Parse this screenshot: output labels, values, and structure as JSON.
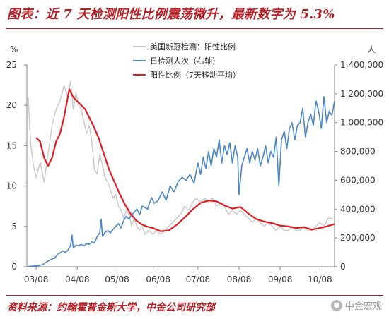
{
  "header": {
    "title": "图表：近 7 天检测阳性比例震荡微升，最新数字为 5.3%"
  },
  "footer": {
    "source": "资料来源：约翰霍普金斯大学，中金公司研究部",
    "watermark": "中金宏观"
  },
  "colors": {
    "title": "#b22026",
    "positivity_daily": "#c8c8c8",
    "tests": "#4a86c8",
    "positivity_7d": "#e31b23"
  },
  "chart_data": {
    "type": "line",
    "left_axis": {
      "unit_label": "%",
      "range": [
        0,
        25
      ],
      "ticks": [
        0,
        5,
        10,
        15,
        20,
        25
      ]
    },
    "right_axis": {
      "unit_label": "人",
      "range": [
        0,
        1400000
      ],
      "ticks": [
        0,
        200000,
        400000,
        600000,
        800000,
        1000000,
        1200000,
        1400000
      ],
      "tick_labels": [
        "0",
        "200,000",
        "400,000",
        "600,000",
        "800,000",
        "1,000,000",
        "1,200,000",
        "1,400,000"
      ]
    },
    "x_axis": {
      "range": [
        "2020-03-01",
        "2020-10-19"
      ],
      "tick_dates": [
        "2020-03-08",
        "2020-04-08",
        "2020-05-08",
        "2020-06-08",
        "2020-07-08",
        "2020-08-08",
        "2020-09-08",
        "2020-10-08"
      ],
      "tick_labels": [
        "03/08",
        "04/08",
        "05/08",
        "06/08",
        "07/08",
        "08/08",
        "09/08",
        "10/08"
      ]
    },
    "grid": false,
    "legend": {
      "position": "top-center"
    },
    "series": [
      {
        "name": "美国新冠检测：阳性比例",
        "axis": "left",
        "style": "daily",
        "points": [
          [
            "2020-03-02",
            21.0
          ],
          [
            "2020-03-04",
            15.0
          ],
          [
            "2020-03-06",
            12.5
          ],
          [
            "2020-03-08",
            11.0
          ],
          [
            "2020-03-11",
            13.0
          ],
          [
            "2020-03-14",
            10.5
          ],
          [
            "2020-03-17",
            14.0
          ],
          [
            "2020-03-20",
            17.5
          ],
          [
            "2020-03-23",
            19.5
          ],
          [
            "2020-03-26",
            20.5
          ],
          [
            "2020-03-29",
            22.5
          ],
          [
            "2020-04-01",
            21.0
          ],
          [
            "2020-04-03",
            23.0
          ],
          [
            "2020-04-05",
            19.5
          ],
          [
            "2020-04-07",
            21.5
          ],
          [
            "2020-04-09",
            20.0
          ],
          [
            "2020-04-11",
            19.5
          ],
          [
            "2020-04-13",
            18.0
          ],
          [
            "2020-04-15",
            16.5
          ],
          [
            "2020-04-17",
            17.5
          ],
          [
            "2020-04-19",
            15.5
          ],
          [
            "2020-04-21",
            12.0
          ],
          [
            "2020-04-23",
            11.5
          ],
          [
            "2020-04-25",
            14.0
          ],
          [
            "2020-04-27",
            12.5
          ],
          [
            "2020-04-29",
            11.0
          ],
          [
            "2020-05-01",
            10.5
          ],
          [
            "2020-05-03",
            9.5
          ],
          [
            "2020-05-05",
            8.5
          ],
          [
            "2020-05-07",
            9.0
          ],
          [
            "2020-05-09",
            7.5
          ],
          [
            "2020-05-11",
            7.0
          ],
          [
            "2020-05-13",
            6.0
          ],
          [
            "2020-05-15",
            7.0
          ],
          [
            "2020-05-17",
            6.5
          ],
          [
            "2020-05-19",
            5.0
          ],
          [
            "2020-05-21",
            6.0
          ],
          [
            "2020-05-23",
            5.0
          ],
          [
            "2020-05-25",
            4.5
          ],
          [
            "2020-05-27",
            5.0
          ],
          [
            "2020-05-29",
            4.0
          ],
          [
            "2020-06-01",
            4.5
          ],
          [
            "2020-06-04",
            4.0
          ],
          [
            "2020-06-07",
            4.5
          ],
          [
            "2020-06-10",
            4.0
          ],
          [
            "2020-06-13",
            4.5
          ],
          [
            "2020-06-16",
            5.0
          ],
          [
            "2020-06-19",
            5.5
          ],
          [
            "2020-06-22",
            6.0
          ],
          [
            "2020-06-25",
            6.5
          ],
          [
            "2020-06-28",
            7.5
          ],
          [
            "2020-07-01",
            7.0
          ],
          [
            "2020-07-04",
            8.0
          ],
          [
            "2020-07-07",
            8.5
          ],
          [
            "2020-07-10",
            8.0
          ],
          [
            "2020-07-13",
            8.5
          ],
          [
            "2020-07-16",
            8.0
          ],
          [
            "2020-07-19",
            8.5
          ],
          [
            "2020-07-22",
            7.5
          ],
          [
            "2020-07-25",
            8.0
          ],
          [
            "2020-07-28",
            7.5
          ],
          [
            "2020-07-31",
            6.5
          ],
          [
            "2020-08-03",
            7.0
          ],
          [
            "2020-08-06",
            6.5
          ],
          [
            "2020-08-09",
            7.0
          ],
          [
            "2020-08-12",
            6.5
          ],
          [
            "2020-08-15",
            6.0
          ],
          [
            "2020-08-18",
            5.5
          ],
          [
            "2020-08-21",
            6.0
          ],
          [
            "2020-08-24",
            5.5
          ],
          [
            "2020-08-27",
            5.0
          ],
          [
            "2020-08-30",
            5.5
          ],
          [
            "2020-09-02",
            5.0
          ],
          [
            "2020-09-05",
            4.5
          ],
          [
            "2020-09-08",
            5.0
          ],
          [
            "2020-09-11",
            4.5
          ],
          [
            "2020-09-14",
            4.5
          ],
          [
            "2020-09-17",
            5.0
          ],
          [
            "2020-09-20",
            4.5
          ],
          [
            "2020-09-23",
            4.5
          ],
          [
            "2020-09-26",
            5.0
          ],
          [
            "2020-09-29",
            4.5
          ],
          [
            "2020-10-02",
            4.5
          ],
          [
            "2020-10-05",
            5.0
          ],
          [
            "2020-10-08",
            5.5
          ],
          [
            "2020-10-11",
            5.0
          ],
          [
            "2020-10-14",
            6.0
          ],
          [
            "2020-10-17",
            6.0
          ]
        ]
      },
      {
        "name": "日检测人次（右轴）",
        "axis": "right",
        "style": "line",
        "points": [
          [
            "2020-03-02",
            2000
          ],
          [
            "2020-03-06",
            5000
          ],
          [
            "2020-03-10",
            8000
          ],
          [
            "2020-03-13",
            15000
          ],
          [
            "2020-03-16",
            35000
          ],
          [
            "2020-03-19",
            50000
          ],
          [
            "2020-03-22",
            60000
          ],
          [
            "2020-03-24",
            85000
          ],
          [
            "2020-03-26",
            95000
          ],
          [
            "2020-03-28",
            110000
          ],
          [
            "2020-03-30",
            100000
          ],
          [
            "2020-04-01",
            115000
          ],
          [
            "2020-04-03",
            150000
          ],
          [
            "2020-04-04",
            220000
          ],
          [
            "2020-04-05",
            130000
          ],
          [
            "2020-04-07",
            150000
          ],
          [
            "2020-04-09",
            145000
          ],
          [
            "2020-04-11",
            155000
          ],
          [
            "2020-04-13",
            145000
          ],
          [
            "2020-04-15",
            160000
          ],
          [
            "2020-04-17",
            155000
          ],
          [
            "2020-04-19",
            175000
          ],
          [
            "2020-04-21",
            165000
          ],
          [
            "2020-04-23",
            210000
          ],
          [
            "2020-04-25",
            235000
          ],
          [
            "2020-04-26",
            330000
          ],
          [
            "2020-04-27",
            210000
          ],
          [
            "2020-04-29",
            240000
          ],
          [
            "2020-05-01",
            250000
          ],
          [
            "2020-05-03",
            235000
          ],
          [
            "2020-05-05",
            260000
          ],
          [
            "2020-05-07",
            280000
          ],
          [
            "2020-05-09",
            300000
          ],
          [
            "2020-05-11",
            270000
          ],
          [
            "2020-05-13",
            320000
          ],
          [
            "2020-05-15",
            350000
          ],
          [
            "2020-05-17",
            330000
          ],
          [
            "2020-05-19",
            360000
          ],
          [
            "2020-05-21",
            380000
          ],
          [
            "2020-05-23",
            400000
          ],
          [
            "2020-05-25",
            360000
          ],
          [
            "2020-05-27",
            420000
          ],
          [
            "2020-05-29",
            410000
          ],
          [
            "2020-05-31",
            400000
          ],
          [
            "2020-06-03",
            480000
          ],
          [
            "2020-06-05",
            440000
          ],
          [
            "2020-06-08",
            460000
          ],
          [
            "2020-06-11",
            520000
          ],
          [
            "2020-06-14",
            460000
          ],
          [
            "2020-06-17",
            560000
          ],
          [
            "2020-06-20",
            520000
          ],
          [
            "2020-06-23",
            590000
          ],
          [
            "2020-06-26",
            620000
          ],
          [
            "2020-06-29",
            600000
          ],
          [
            "2020-07-02",
            640000
          ],
          [
            "2020-07-05",
            580000
          ],
          [
            "2020-07-08",
            720000
          ],
          [
            "2020-07-10",
            640000
          ],
          [
            "2020-07-12",
            760000
          ],
          [
            "2020-07-14",
            680000
          ],
          [
            "2020-07-16",
            800000
          ],
          [
            "2020-07-18",
            700000
          ],
          [
            "2020-07-20",
            820000
          ],
          [
            "2020-07-22",
            760000
          ],
          [
            "2020-07-24",
            880000
          ],
          [
            "2020-07-26",
            720000
          ],
          [
            "2020-07-28",
            840000
          ],
          [
            "2020-07-30",
            780000
          ],
          [
            "2020-08-01",
            860000
          ],
          [
            "2020-08-03",
            720000
          ],
          [
            "2020-08-05",
            840000
          ],
          [
            "2020-08-07",
            760000
          ],
          [
            "2020-08-08",
            500000
          ],
          [
            "2020-08-10",
            700000
          ],
          [
            "2020-08-12",
            760000
          ],
          [
            "2020-08-14",
            820000
          ],
          [
            "2020-08-16",
            720000
          ],
          [
            "2020-08-18",
            800000
          ],
          [
            "2020-08-20",
            740000
          ],
          [
            "2020-08-22",
            820000
          ],
          [
            "2020-08-24",
            700000
          ],
          [
            "2020-08-26",
            760000
          ],
          [
            "2020-08-28",
            840000
          ],
          [
            "2020-08-30",
            720000
          ],
          [
            "2020-09-01",
            800000
          ],
          [
            "2020-09-03",
            760000
          ],
          [
            "2020-09-05",
            900000
          ],
          [
            "2020-09-07",
            560000
          ],
          [
            "2020-09-09",
            880000
          ],
          [
            "2020-09-11",
            940000
          ],
          [
            "2020-09-13",
            820000
          ],
          [
            "2020-09-15",
            960000
          ],
          [
            "2020-09-17",
            1000000
          ],
          [
            "2020-09-19",
            880000
          ],
          [
            "2020-09-21",
            980000
          ],
          [
            "2020-09-23",
            1000000
          ],
          [
            "2020-09-25",
            1100000
          ],
          [
            "2020-09-27",
            900000
          ],
          [
            "2020-09-29",
            1000000
          ],
          [
            "2020-10-01",
            1060000
          ],
          [
            "2020-10-03",
            980000
          ],
          [
            "2020-10-05",
            1150000
          ],
          [
            "2020-10-07",
            1080000
          ],
          [
            "2020-10-09",
            960000
          ],
          [
            "2020-10-11",
            1180000
          ],
          [
            "2020-10-13",
            1000000
          ],
          [
            "2020-10-15",
            1080000
          ],
          [
            "2020-10-17",
            1050000
          ],
          [
            "2020-10-19",
            1150000
          ]
        ]
      },
      {
        "name": "阳性比例（7天移动平均）",
        "axis": "left",
        "style": "line",
        "points": [
          [
            "2020-03-08",
            16.0
          ],
          [
            "2020-03-11",
            15.5
          ],
          [
            "2020-03-14",
            13.5
          ],
          [
            "2020-03-17",
            12.5
          ],
          [
            "2020-03-20",
            13.5
          ],
          [
            "2020-03-23",
            15.5
          ],
          [
            "2020-03-26",
            16.5
          ],
          [
            "2020-03-29",
            18.5
          ],
          [
            "2020-04-02",
            22.0
          ],
          [
            "2020-04-05",
            21.0
          ],
          [
            "2020-04-08",
            20.5
          ],
          [
            "2020-04-11",
            20.0
          ],
          [
            "2020-04-14",
            19.5
          ],
          [
            "2020-04-17",
            18.5
          ],
          [
            "2020-04-20",
            17.5
          ],
          [
            "2020-04-24",
            16.0
          ],
          [
            "2020-04-28",
            14.0
          ],
          [
            "2020-05-02",
            12.0
          ],
          [
            "2020-05-06",
            10.5
          ],
          [
            "2020-05-10",
            9.0
          ],
          [
            "2020-05-14",
            7.7
          ],
          [
            "2020-05-18",
            6.6
          ],
          [
            "2020-05-22",
            5.8
          ],
          [
            "2020-05-26",
            5.3
          ],
          [
            "2020-05-30",
            5.0
          ],
          [
            "2020-06-04",
            4.8
          ],
          [
            "2020-06-10",
            4.4
          ],
          [
            "2020-06-16",
            4.5
          ],
          [
            "2020-06-22",
            5.2
          ],
          [
            "2020-06-28",
            6.1
          ],
          [
            "2020-07-04",
            7.1
          ],
          [
            "2020-07-10",
            7.9
          ],
          [
            "2020-07-16",
            8.2
          ],
          [
            "2020-07-22",
            8.1
          ],
          [
            "2020-07-28",
            7.6
          ],
          [
            "2020-08-03",
            7.2
          ],
          [
            "2020-08-09",
            7.4
          ],
          [
            "2020-08-15",
            6.6
          ],
          [
            "2020-08-21",
            5.9
          ],
          [
            "2020-08-27",
            5.6
          ],
          [
            "2020-09-02",
            5.4
          ],
          [
            "2020-09-08",
            5.1
          ],
          [
            "2020-09-14",
            5.0
          ],
          [
            "2020-09-20",
            4.8
          ],
          [
            "2020-09-26",
            4.9
          ],
          [
            "2020-10-02",
            4.6
          ],
          [
            "2020-10-08",
            4.8
          ],
          [
            "2020-10-13",
            5.0
          ],
          [
            "2020-10-19",
            5.3
          ]
        ]
      }
    ]
  }
}
